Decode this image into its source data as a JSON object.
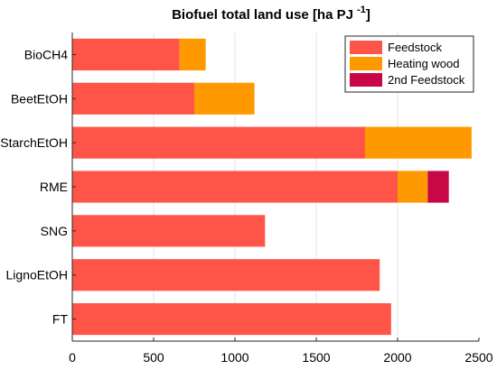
{
  "chart_data": {
    "type": "bar",
    "orientation": "horizontal",
    "stacked": true,
    "title": "Biofuel total land use [ha PJ ",
    "title_superscript": "-1",
    "title_suffix": "]",
    "categories": [
      "BioCH4",
      "BeetEtOH",
      "StarchEtOH",
      "RME",
      "SNG",
      "LignoEtOH",
      "FT"
    ],
    "series": [
      {
        "name": "Feedstock",
        "color": "#ff5549",
        "values": [
          660,
          750,
          1800,
          2000,
          1185,
          1890,
          1960
        ]
      },
      {
        "name": "Heating wood",
        "color": "#ff9900",
        "values": [
          160,
          370,
          655,
          185,
          0,
          0,
          0
        ]
      },
      {
        "name": "2nd Feedstock",
        "color": "#c80846",
        "values": [
          0,
          0,
          0,
          130,
          0,
          0,
          0
        ]
      }
    ],
    "xlim": [
      0,
      2500
    ],
    "xticks": [
      "0",
      "500",
      "1000",
      "1500",
      "2000",
      "2500"
    ],
    "grid": "vertical",
    "legend_position": "top-right"
  }
}
